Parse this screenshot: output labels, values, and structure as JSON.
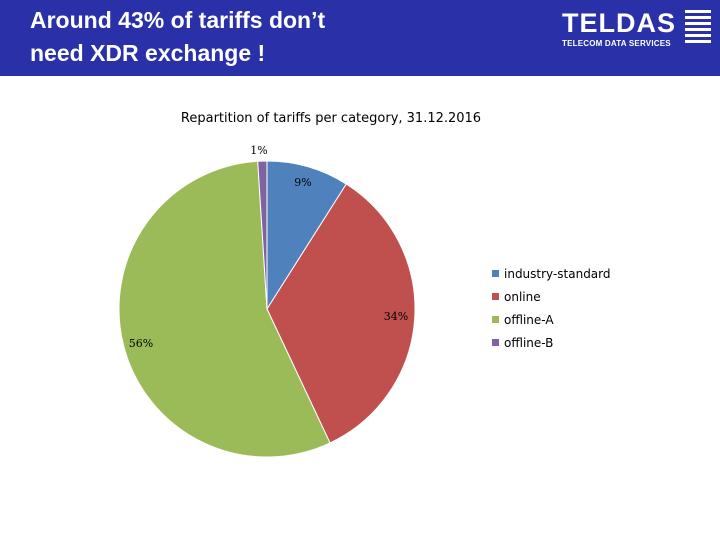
{
  "header": {
    "title": "Around 43% of tariffs don’t\nneed XDR exchange !",
    "logo_name": "TELDAS",
    "logo_tagline": "TELECOM DATA SERVICES",
    "background": "#2a30a8"
  },
  "chart_data": {
    "type": "pie",
    "title": "Repartition of tariffs per category, 31.12.2016",
    "categories": [
      "industry-standard",
      "online",
      "offline-A",
      "offline-B"
    ],
    "values": [
      9,
      34,
      56,
      1
    ],
    "labels": [
      "9%",
      "34%",
      "56%",
      "1%"
    ],
    "colors": [
      "#4f81bd",
      "#c0504d",
      "#9bbb59",
      "#8064a2"
    ],
    "legend": "right"
  }
}
